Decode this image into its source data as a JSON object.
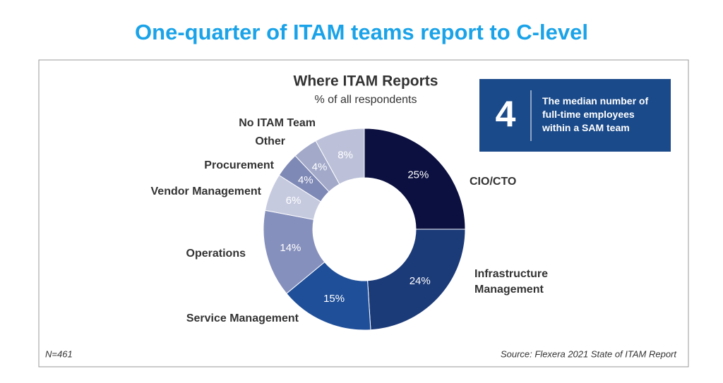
{
  "headline": "One-quarter of ITAM teams report to C-level",
  "chart_data": {
    "type": "pie",
    "title": "Where ITAM Reports",
    "subtitle": "% of all respondents",
    "categories": [
      "CIO/CTO",
      "Infrastructure Management",
      "Service Management",
      "Operations",
      "Vendor Management",
      "Procurement",
      "Other",
      "No ITAM Team"
    ],
    "values": [
      25,
      24,
      15,
      14,
      6,
      4,
      4,
      8
    ],
    "value_labels": [
      "25%",
      "24%",
      "15%",
      "14%",
      "6%",
      "4%",
      "4%",
      "8%"
    ],
    "colors": [
      "#0b1040",
      "#1b3a78",
      "#1f4f99",
      "#8690bd",
      "#c6cadf",
      "#7f89b6",
      "#a2a9c9",
      "#bcc1d9"
    ]
  },
  "callout": {
    "number": "4",
    "text": "The median number of full-time employees within a SAM team"
  },
  "note": "N=461",
  "source": "Source: Flexera 2021 State of ITAM Report"
}
